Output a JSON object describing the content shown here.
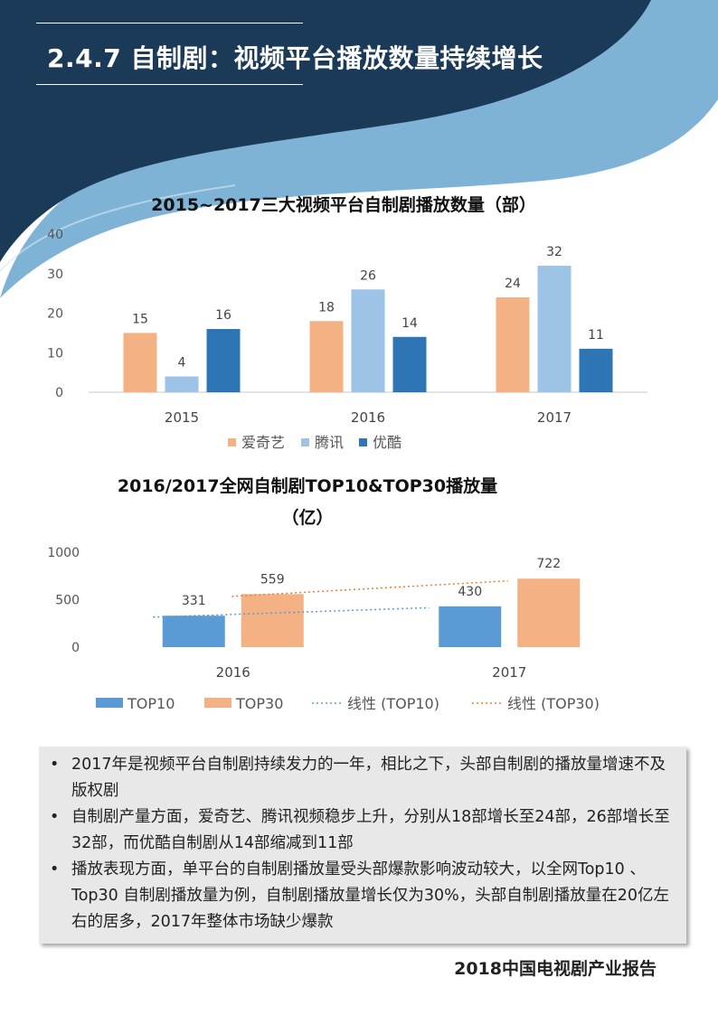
{
  "header": {
    "title": "2.4.7 自制剧：视频平台播放数量持续增长"
  },
  "colors": {
    "iqiyi": "#F4B183",
    "tencent": "#9DC3E6",
    "youku": "#2E75B6",
    "top10": "#5B9BD5",
    "top30": "#F4B183",
    "navy": "#1A3A58",
    "wave_light": "#7FB3D5"
  },
  "chart_data": [
    {
      "type": "bar",
      "title": "2015~2017三大视频平台自制剧播放数量（部）",
      "categories": [
        "2015",
        "2016",
        "2017"
      ],
      "series": [
        {
          "name": "爱奇艺",
          "values": [
            15,
            18,
            24
          ]
        },
        {
          "name": "腾讯",
          "values": [
            4,
            26,
            32
          ]
        },
        {
          "name": "优酷",
          "values": [
            16,
            14,
            11
          ]
        }
      ],
      "ylim": [
        0,
        40
      ],
      "yticks": [
        0,
        10,
        20,
        30,
        40
      ],
      "legend": "bottom"
    },
    {
      "type": "bar",
      "title_line1": "2016/2017全网自制剧TOP10&TOP30播放量",
      "title_line2": "（亿）",
      "categories": [
        "2016",
        "2017"
      ],
      "series": [
        {
          "name": "TOP10",
          "values": [
            331,
            430
          ]
        },
        {
          "name": "TOP30",
          "values": [
            559,
            722
          ]
        }
      ],
      "trendlines": [
        {
          "name": "线性 (TOP10)",
          "of": "TOP10"
        },
        {
          "name": "线性 (TOP30)",
          "of": "TOP30"
        }
      ],
      "ylim": [
        0,
        1000
      ],
      "yticks": [
        0,
        500,
        1000
      ],
      "legend": "bottom"
    }
  ],
  "notes": {
    "bullet": "•",
    "items": [
      "2017年是视频平台自制剧持续发力的一年，相比之下，头部自制剧的播放量增速不及版权剧",
      "自制剧产量方面，爱奇艺、腾讯视频稳步上升，分别从18部增长至24部，26部增长至32部，而优酷自制剧从14部缩减到11部",
      "播放表现方面，单平台的自制剧播放量受头部爆款影响波动较大，以全网Top10 、Top30 自制剧播放量为例，自制剧播放量增长仅为30%，头部自制剧播放量在20亿左右的居多，2017年整体市场缺少爆款"
    ]
  },
  "footer": {
    "text": "2018中国电视剧产业报告"
  }
}
